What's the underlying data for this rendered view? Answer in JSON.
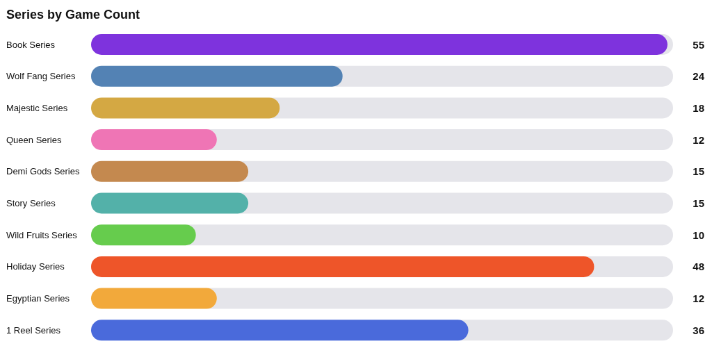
{
  "chart_data": {
    "type": "bar",
    "orientation": "horizontal",
    "title": "Series by Game Count",
    "categories": [
      "Book Series",
      "Wolf Fang Series",
      "Majestic Series",
      "Queen Series",
      "Demi Gods Series",
      "Story Series",
      "Wild Fruits Series",
      "Holiday Series",
      "Egyptian Series",
      "1 Reel Series"
    ],
    "values": [
      55,
      24,
      18,
      12,
      15,
      15,
      10,
      48,
      12,
      36
    ],
    "colors": [
      "#7e33dd",
      "#5382b4",
      "#d4a843",
      "#ef75b5",
      "#c4894f",
      "#53b1a9",
      "#66cc4d",
      "#ee5529",
      "#f2a93b",
      "#4a6adb"
    ],
    "data_labels": true
  }
}
